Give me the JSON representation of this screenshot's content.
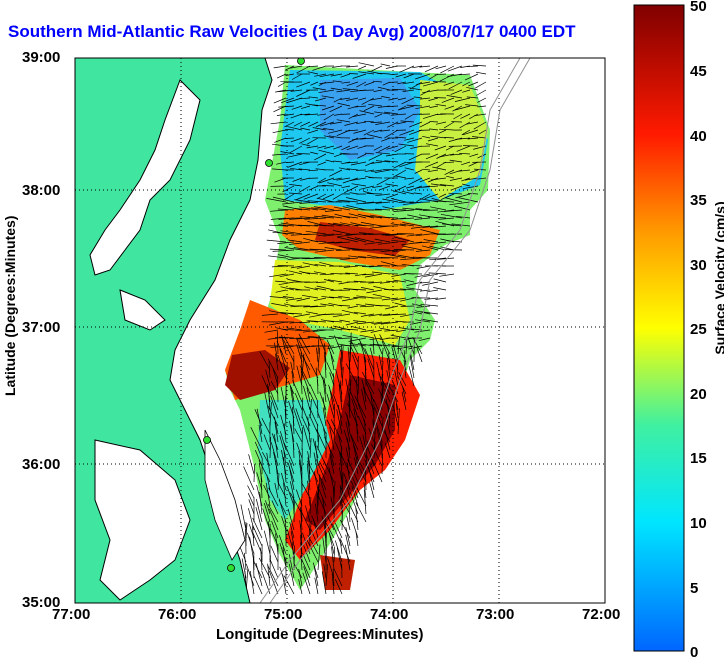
{
  "title": "Southern Mid-Atlantic Raw Velocities (1 Day Avg) 2008/07/17 0400 EDT",
  "xlabel": "Longitude (Degrees:Minutes)",
  "ylabel": "Latitude (Degrees:Minutes)",
  "colorbar": {
    "label": "Surface Velocity (cm/s)",
    "min": 0,
    "max": 50,
    "ticks": [
      "0",
      "5",
      "10",
      "15",
      "20",
      "25",
      "30",
      "35",
      "40",
      "45",
      "50"
    ]
  },
  "axes": {
    "x_ticks": [
      "77:00",
      "76:00",
      "75:00",
      "74:00",
      "73:00",
      "72:00"
    ],
    "y_ticks": [
      "39:00",
      "38:00",
      "37:00",
      "36:00",
      "35:00"
    ],
    "lon_range": [
      -77,
      -72
    ],
    "lat_range": [
      35,
      39
    ],
    "grid": "dotted"
  },
  "colors": {
    "land": "#40e6a0",
    "coast": "#000000",
    "title": "#0000ff",
    "station": "#30e030"
  }
}
